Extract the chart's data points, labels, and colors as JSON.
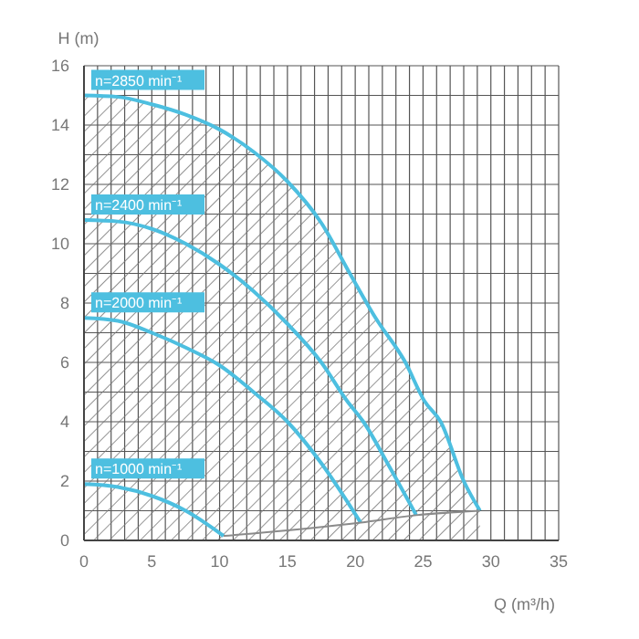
{
  "chart_data": {
    "type": "line",
    "xlabel": "Q (m³/h)",
    "ylabel": "H (m)",
    "series": [
      {
        "type": "area",
        "color": "#4dbfe0",
        "x": [
          0,
          2.5,
          5,
          7.5,
          10,
          12.5,
          15,
          17.5,
          19.6,
          21.5,
          23.7,
          25.1,
          26.3,
          28,
          29.2
        ],
        "values": [
          15,
          14.95,
          14.7,
          14.35,
          13.85,
          13.1,
          12.1,
          10.7,
          9,
          7.5,
          6,
          4.7,
          4,
          2,
          1.0
        ]
      },
      {
        "color": "#4dbfe0",
        "x": [
          0,
          2.5,
          5,
          7.5,
          10,
          12.5,
          15,
          17.5,
          19.4,
          20.6,
          22.5,
          24.5
        ],
        "values": [
          10.8,
          10.75,
          10.5,
          10.0,
          9.3,
          8.4,
          7.3,
          6.0,
          4.7,
          4,
          2.5,
          0.85
        ]
      },
      {
        "color": "#4dbfe0",
        "x": [
          0,
          2.5,
          5,
          7.5,
          10,
          12.5,
          15,
          17.5,
          20.4
        ],
        "values": [
          7.5,
          7.4,
          7.0,
          6.5,
          5.9,
          5.0,
          4.0,
          2.6,
          0.6
        ]
      },
      {
        "color": "#4dbfe0",
        "x": [
          0,
          2.5,
          5,
          7.5,
          10.3
        ],
        "values": [
          1.9,
          1.8,
          1.5,
          1.0,
          0.15
        ]
      },
      {
        "color": "#8a8a8a",
        "x": [
          10.3,
          20.4,
          24.5,
          29.2
        ],
        "values": [
          0.15,
          0.6,
          0.85,
          1.0
        ]
      }
    ],
    "annotations": [
      "n=2850 min⁻¹",
      "n=2400 min⁻¹",
      "n=2000 min⁻¹",
      "n=1000 min⁻¹"
    ],
    "xlim": [
      0,
      35
    ],
    "xticks": [
      0,
      {
        "value": 1,
        "label": null
      },
      {
        "value": 2,
        "label": null
      },
      {
        "value": 3,
        "label": null
      },
      {
        "value": 4,
        "label": null
      },
      5,
      {
        "value": 6,
        "label": null
      },
      {
        "value": 7,
        "label": null
      },
      {
        "value": 8,
        "label": null
      },
      {
        "value": 9,
        "label": null
      },
      10,
      {
        "value": 11,
        "label": null
      },
      {
        "value": 12,
        "label": null
      },
      {
        "value": 13,
        "label": null
      },
      {
        "value": 14,
        "label": null
      },
      15,
      {
        "value": 16,
        "label": null
      },
      {
        "value": 17,
        "label": null
      },
      {
        "value": 18,
        "label": null
      },
      {
        "value": 19,
        "label": null
      },
      20,
      {
        "value": 21,
        "label": null
      },
      {
        "value": 22,
        "label": null
      },
      {
        "value": 23,
        "label": null
      },
      {
        "value": 24,
        "label": null
      },
      25,
      {
        "value": 26,
        "label": null
      },
      {
        "value": 27,
        "label": null
      },
      {
        "value": 28,
        "label": null
      },
      {
        "value": 29,
        "label": null
      },
      30,
      {
        "value": 31,
        "label": null
      },
      {
        "value": 32,
        "label": null
      },
      {
        "value": 33,
        "label": null
      },
      {
        "value": 34,
        "label": null
      },
      35
    ],
    "ylim": [
      0,
      16
    ],
    "yticks": [
      0,
      {
        "value": 1,
        "label": null
      },
      2,
      {
        "value": 3,
        "label": null
      },
      4,
      {
        "value": 5,
        "label": null
      },
      6,
      {
        "value": 7,
        "label": null
      },
      8,
      {
        "value": 9,
        "label": null
      },
      10,
      {
        "value": 11,
        "label": null
      },
      12,
      {
        "value": 13,
        "label": null
      },
      14,
      {
        "value": 15,
        "label": null
      },
      16
    ],
    "grid": true,
    "marker": "none",
    "line_style": "solid"
  }
}
